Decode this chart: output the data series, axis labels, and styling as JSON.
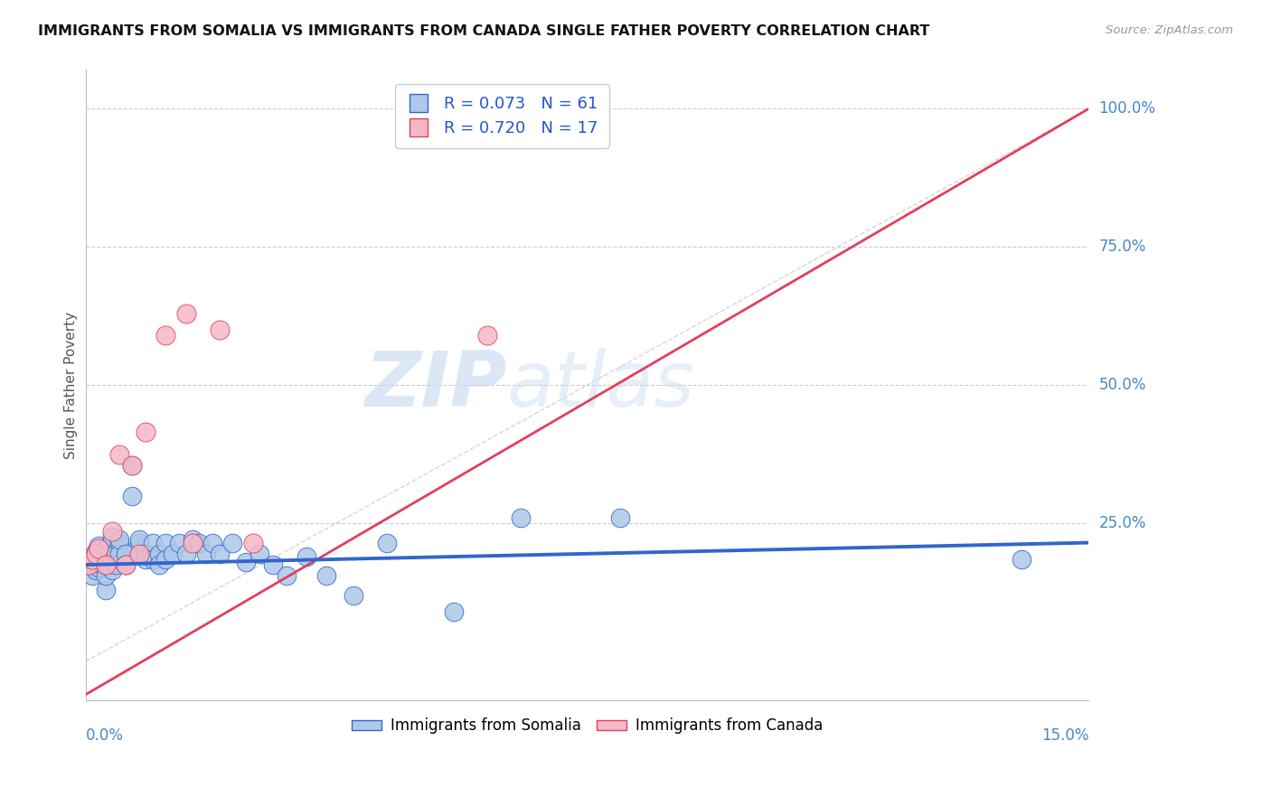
{
  "title": "IMMIGRANTS FROM SOMALIA VS IMMIGRANTS FROM CANADA SINGLE FATHER POVERTY CORRELATION CHART",
  "source": "Source: ZipAtlas.com",
  "ylabel": "Single Father Poverty",
  "R_somalia": "0.073",
  "N_somalia": "61",
  "R_canada": "0.720",
  "N_canada": "17",
  "color_somalia": "#adc8e8",
  "color_canada": "#f5b8c8",
  "line_somalia": "#3366cc",
  "line_canada": "#e0405a",
  "diagonal_color": "#cccccc",
  "background": "#ffffff",
  "grid_color": "#cccccc",
  "legend_somalia": "Immigrants from Somalia",
  "legend_canada": "Immigrants from Canada",
  "xmin": 0.0,
  "xmax": 0.15,
  "ymin": -0.07,
  "ymax": 1.07,
  "yaxis_ticks": [
    0.25,
    0.5,
    0.75,
    1.0
  ],
  "yaxis_labels": [
    "25.0%",
    "50.0%",
    "75.0%",
    "100.0%"
  ],
  "somalia_x": [
    0.0005,
    0.001,
    0.001,
    0.0015,
    0.0015,
    0.002,
    0.002,
    0.002,
    0.0025,
    0.0025,
    0.003,
    0.003,
    0.003,
    0.003,
    0.0035,
    0.0035,
    0.004,
    0.004,
    0.004,
    0.0045,
    0.0045,
    0.005,
    0.005,
    0.005,
    0.006,
    0.006,
    0.006,
    0.007,
    0.007,
    0.008,
    0.008,
    0.008,
    0.009,
    0.009,
    0.01,
    0.01,
    0.011,
    0.011,
    0.012,
    0.012,
    0.013,
    0.014,
    0.015,
    0.016,
    0.017,
    0.018,
    0.019,
    0.02,
    0.022,
    0.024,
    0.026,
    0.028,
    0.03,
    0.033,
    0.036,
    0.04,
    0.045,
    0.055,
    0.065,
    0.08,
    0.14
  ],
  "somalia_y": [
    0.175,
    0.155,
    0.185,
    0.2,
    0.165,
    0.17,
    0.21,
    0.19,
    0.175,
    0.195,
    0.13,
    0.185,
    0.155,
    0.205,
    0.175,
    0.21,
    0.165,
    0.185,
    0.225,
    0.195,
    0.175,
    0.215,
    0.195,
    0.22,
    0.175,
    0.195,
    0.175,
    0.3,
    0.355,
    0.195,
    0.215,
    0.22,
    0.195,
    0.185,
    0.215,
    0.185,
    0.195,
    0.175,
    0.215,
    0.185,
    0.195,
    0.215,
    0.195,
    0.22,
    0.215,
    0.195,
    0.215,
    0.195,
    0.215,
    0.18,
    0.195,
    0.175,
    0.155,
    0.19,
    0.155,
    0.12,
    0.215,
    0.09,
    0.26,
    0.26,
    0.185
  ],
  "canada_x": [
    0.0005,
    0.001,
    0.0015,
    0.002,
    0.003,
    0.004,
    0.005,
    0.006,
    0.007,
    0.008,
    0.009,
    0.012,
    0.015,
    0.016,
    0.02,
    0.025,
    0.06
  ],
  "canada_y": [
    0.175,
    0.185,
    0.195,
    0.205,
    0.175,
    0.235,
    0.375,
    0.175,
    0.355,
    0.195,
    0.415,
    0.59,
    0.63,
    0.215,
    0.6,
    0.215,
    0.59
  ],
  "canada_line_x0": 0.0,
  "canada_line_y0": -0.06,
  "canada_line_x1": 0.15,
  "canada_line_y1": 1.0,
  "somalia_line_x0": 0.0,
  "somalia_line_y0": 0.175,
  "somalia_line_x1": 0.15,
  "somalia_line_y1": 0.215
}
